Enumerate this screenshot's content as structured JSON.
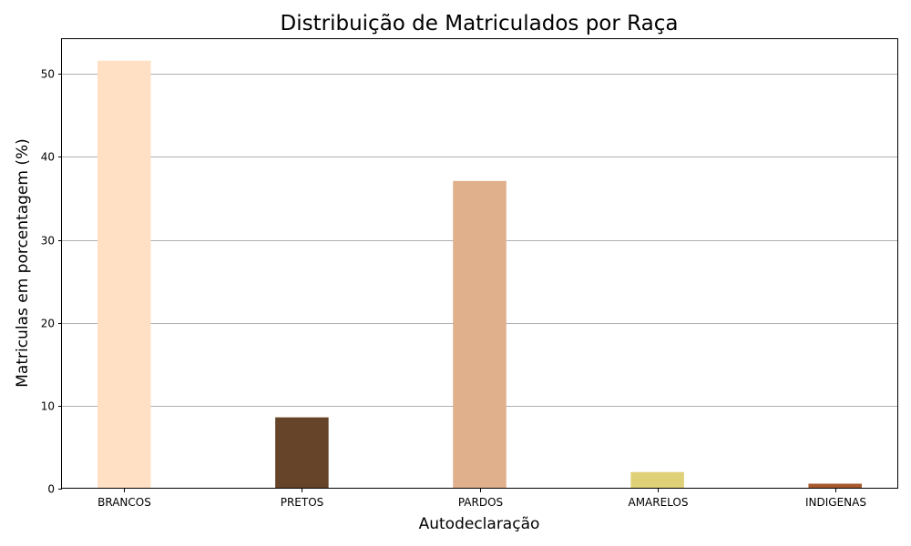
{
  "chart_data": {
    "type": "bar",
    "title": "Distribuição de Matriculados por Raça",
    "xlabel": "Autodeclaração",
    "ylabel": "Matriculas em porcentagem (%)",
    "categories": [
      "BRANCOS",
      "PRETOS",
      "PARDOS",
      "AMARELOS",
      "INDIGENAS"
    ],
    "values": [
      51.6,
      8.6,
      37.1,
      2.0,
      0.6
    ],
    "colors": [
      "#ffe0c4",
      "#66442a",
      "#e0b08d",
      "#dfd178",
      "#a7592f"
    ],
    "ylim": [
      0,
      54.2
    ],
    "yticks": [
      0,
      10,
      20,
      30,
      40,
      50
    ],
    "grid": "y-major",
    "legend": "none"
  }
}
